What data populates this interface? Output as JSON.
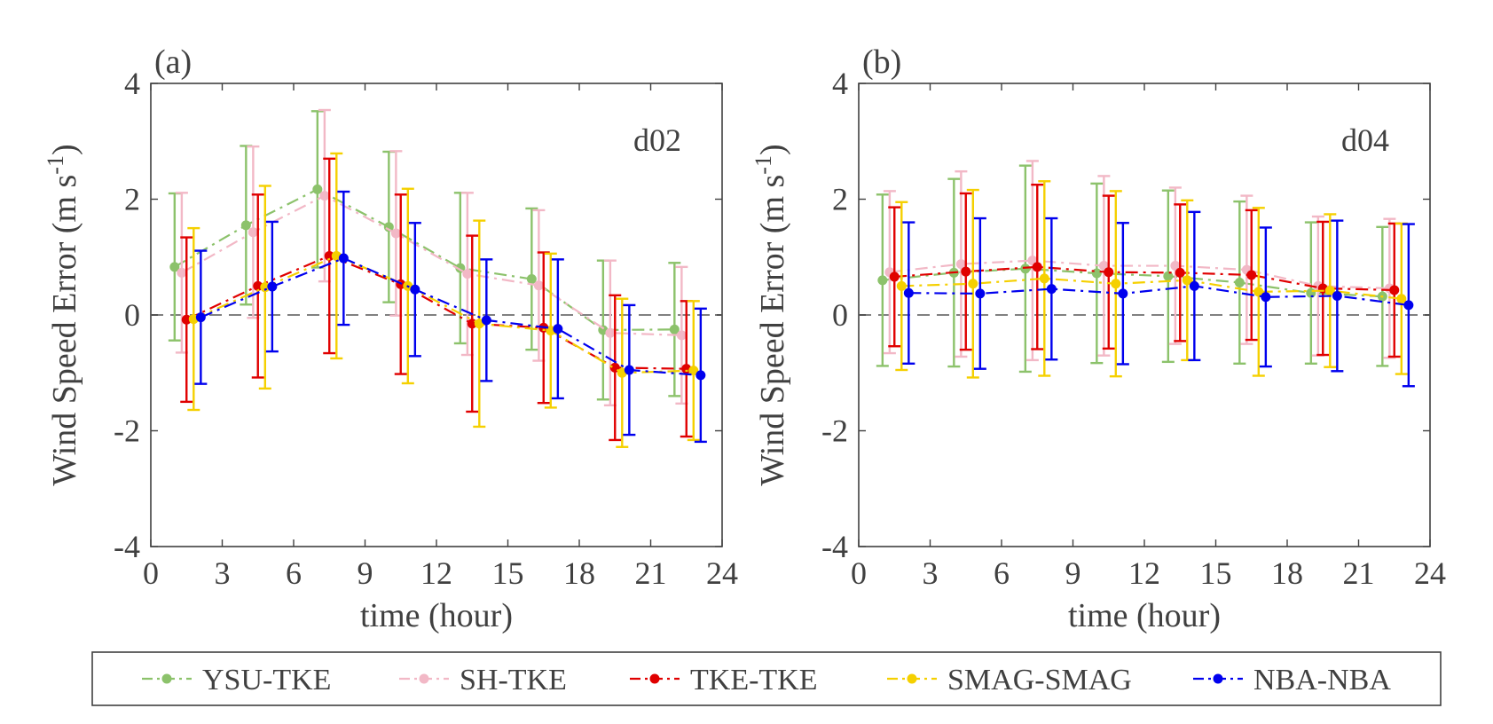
{
  "chart_data": [
    {
      "type": "line",
      "panel_label": "(a)",
      "annotation": "d02",
      "xlabel": "time (hour)",
      "ylabel": "Wind Speed Error (m s",
      "ylabel_sup": "-1",
      "ylabel_close": ")",
      "xlim": [
        0,
        24
      ],
      "ylim": [
        -4,
        4
      ],
      "xticks": [
        "0",
        "3",
        "6",
        "9",
        "12",
        "15",
        "18",
        "21",
        "24"
      ],
      "yticks": [
        "4",
        "2",
        "0",
        "-2",
        "-4"
      ],
      "series": [
        {
          "name": "YSU-TKE",
          "color": "#8cc26b",
          "dash": "dashdot",
          "x": [
            1,
            4,
            7,
            10,
            13,
            16,
            19,
            22
          ],
          "y": [
            0.83,
            1.55,
            2.17,
            1.52,
            0.81,
            0.62,
            -0.26,
            -0.25
          ],
          "err": [
            1.27,
            1.37,
            1.35,
            1.3,
            1.3,
            1.22,
            1.2,
            1.15
          ]
        },
        {
          "name": "SH-TKE",
          "color": "#f2b8c6",
          "dash": "dashdot",
          "x": [
            1.3,
            4.3,
            7.3,
            10.3,
            13.3,
            16.3,
            19.3,
            22.3
          ],
          "y": [
            0.73,
            1.43,
            2.06,
            1.41,
            0.71,
            0.51,
            -0.31,
            -0.35
          ],
          "err": [
            1.38,
            1.48,
            1.48,
            1.42,
            1.4,
            1.3,
            1.25,
            1.18
          ]
        },
        {
          "name": "TKE-TKE",
          "color": "#e00000",
          "dash": "dashdot",
          "x": [
            1.5,
            4.5,
            7.5,
            10.5,
            13.5,
            16.5,
            19.5,
            22.5
          ],
          "y": [
            -0.08,
            0.5,
            1.02,
            0.53,
            -0.15,
            -0.22,
            -0.91,
            -0.93
          ],
          "err": [
            1.42,
            1.58,
            1.68,
            1.55,
            1.52,
            1.3,
            1.25,
            1.17
          ]
        },
        {
          "name": "SMAG-SMAG",
          "color": "#f5d000",
          "dash": "dashdot",
          "x": [
            1.8,
            4.8,
            7.8,
            10.8,
            13.8,
            16.8,
            19.8,
            22.8
          ],
          "y": [
            -0.07,
            0.48,
            1.02,
            0.5,
            -0.15,
            -0.27,
            -1.0,
            -0.96
          ],
          "err": [
            1.57,
            1.75,
            1.77,
            1.68,
            1.78,
            1.33,
            1.28,
            1.2
          ]
        },
        {
          "name": "NBA-NBA",
          "color": "#0000ee",
          "dash": "dashdot",
          "x": [
            2.1,
            5.1,
            8.1,
            11.1,
            14.1,
            17.1,
            20.1,
            23.1
          ],
          "y": [
            -0.04,
            0.49,
            0.98,
            0.44,
            -0.09,
            -0.24,
            -0.95,
            -1.04
          ],
          "err": [
            1.15,
            1.12,
            1.15,
            1.15,
            1.05,
            1.2,
            1.12,
            1.15
          ]
        }
      ]
    },
    {
      "type": "line",
      "panel_label": "(b)",
      "annotation": "d04",
      "xlabel": "time (hour)",
      "ylabel": "Wind Speed Error (m s",
      "ylabel_sup": "-1",
      "ylabel_close": ")",
      "xlim": [
        0,
        24
      ],
      "ylim": [
        -4,
        4
      ],
      "xticks": [
        "0",
        "3",
        "6",
        "9",
        "12",
        "15",
        "18",
        "21",
        "24"
      ],
      "yticks": [
        "4",
        "2",
        "0",
        "-2",
        "-4"
      ],
      "series": [
        {
          "name": "YSU-TKE",
          "color": "#8cc26b",
          "dash": "dashdot",
          "x": [
            1,
            4,
            7,
            10,
            13,
            16,
            19,
            22
          ],
          "y": [
            0.6,
            0.73,
            0.8,
            0.72,
            0.67,
            0.56,
            0.38,
            0.32
          ],
          "err": [
            1.48,
            1.62,
            1.78,
            1.55,
            1.48,
            1.4,
            1.22,
            1.2
          ]
        },
        {
          "name": "SH-TKE",
          "color": "#f2b8c6",
          "dash": "dashdot",
          "x": [
            1.3,
            4.3,
            7.3,
            10.3,
            13.3,
            16.3,
            19.3,
            22.3
          ],
          "y": [
            0.74,
            0.88,
            0.94,
            0.85,
            0.85,
            0.78,
            0.5,
            0.46
          ],
          "err": [
            1.4,
            1.6,
            1.72,
            1.55,
            1.35,
            1.28,
            1.2,
            1.2
          ]
        },
        {
          "name": "TKE-TKE",
          "color": "#e00000",
          "dash": "dashdot",
          "x": [
            1.5,
            4.5,
            7.5,
            10.5,
            13.5,
            16.5,
            19.5,
            22.5
          ],
          "y": [
            0.66,
            0.75,
            0.83,
            0.74,
            0.73,
            0.69,
            0.46,
            0.43
          ],
          "err": [
            1.2,
            1.35,
            1.42,
            1.32,
            1.18,
            1.12,
            1.15,
            1.15
          ]
        },
        {
          "name": "SMAG-SMAG",
          "color": "#f5d000",
          "dash": "dashdot",
          "x": [
            1.8,
            4.8,
            7.8,
            10.8,
            13.8,
            16.8,
            19.8,
            22.8
          ],
          "y": [
            0.5,
            0.54,
            0.63,
            0.54,
            0.6,
            0.4,
            0.42,
            0.28
          ],
          "err": [
            1.45,
            1.62,
            1.68,
            1.6,
            1.38,
            1.45,
            1.32,
            1.3
          ]
        },
        {
          "name": "NBA-NBA",
          "color": "#0000ee",
          "dash": "dashdot",
          "x": [
            2.1,
            5.1,
            8.1,
            11.1,
            14.1,
            17.1,
            20.1,
            23.1
          ],
          "y": [
            0.38,
            0.37,
            0.45,
            0.37,
            0.5,
            0.31,
            0.33,
            0.17
          ],
          "err": [
            1.22,
            1.3,
            1.22,
            1.22,
            1.28,
            1.2,
            1.3,
            1.4
          ]
        }
      ]
    }
  ],
  "legend": [
    {
      "name": "YSU-TKE",
      "color": "#8cc26b"
    },
    {
      "name": "SH-TKE",
      "color": "#f2b8c6"
    },
    {
      "name": "TKE-TKE",
      "color": "#e00000"
    },
    {
      "name": "SMAG-SMAG",
      "color": "#f5d000"
    },
    {
      "name": "NBA-NBA",
      "color": "#0000ee"
    }
  ]
}
